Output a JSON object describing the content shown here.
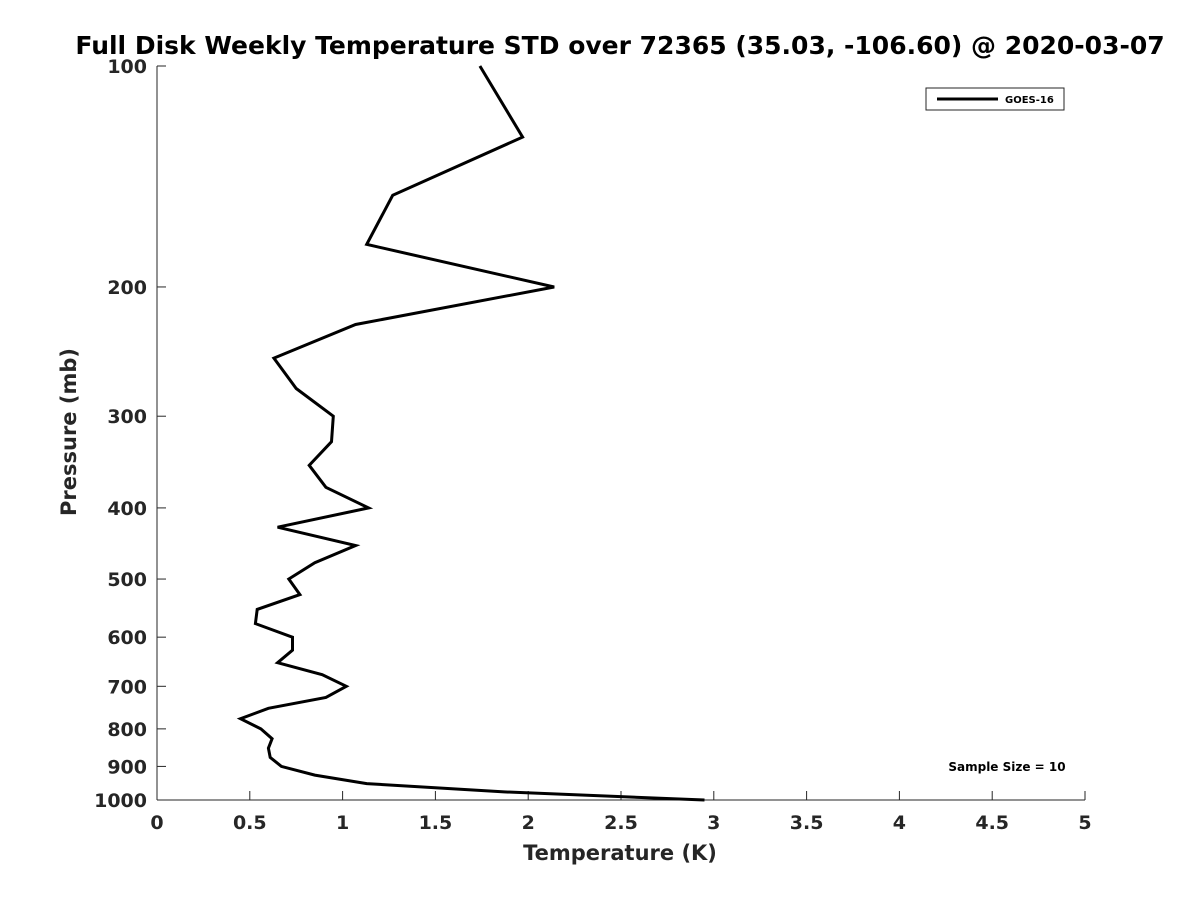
{
  "chart_data": {
    "type": "line",
    "title": "Full Disk Weekly Temperature STD over 72365 (35.03, -106.60) @ 2020-03-07",
    "xlabel": "Temperature (K)",
    "ylabel": "Pressure (mb)",
    "xlim": [
      0,
      5
    ],
    "ylim": [
      100,
      1000
    ],
    "y_scale": "log",
    "y_reversed": true,
    "x_ticks": [
      "0",
      "0.5",
      "1",
      "1.5",
      "2",
      "2.5",
      "3",
      "3.5",
      "4",
      "4.5",
      "5"
    ],
    "y_ticks": [
      "100",
      "200",
      "300",
      "400",
      "500",
      "600",
      "700",
      "800",
      "900",
      "1000"
    ],
    "grid": false,
    "legend_position": "top-right",
    "annotation": "Sample Size = 10",
    "colors": {
      "line": "#000000",
      "text": "#262626"
    },
    "series": [
      {
        "name": "GOES-16",
        "x": [
          1.74,
          1.97,
          1.27,
          1.13,
          2.14,
          1.07,
          0.63,
          0.75,
          0.95,
          0.94,
          0.82,
          0.91,
          1.14,
          0.65,
          1.07,
          0.85,
          0.71,
          0.77,
          0.54,
          0.53,
          0.73,
          0.73,
          0.65,
          0.89,
          1.02,
          0.91,
          0.6,
          0.45,
          0.56,
          0.62,
          0.6,
          0.61,
          0.67,
          0.85,
          1.13,
          1.87,
          2.95
        ],
        "y": [
          100,
          125,
          150,
          175,
          200,
          225,
          250,
          275,
          300,
          325,
          350,
          375,
          400,
          425,
          450,
          475,
          500,
          525,
          550,
          575,
          600,
          625,
          650,
          675,
          700,
          725,
          750,
          775,
          800,
          825,
          850,
          875,
          900,
          925,
          950,
          975,
          1000
        ]
      }
    ]
  }
}
